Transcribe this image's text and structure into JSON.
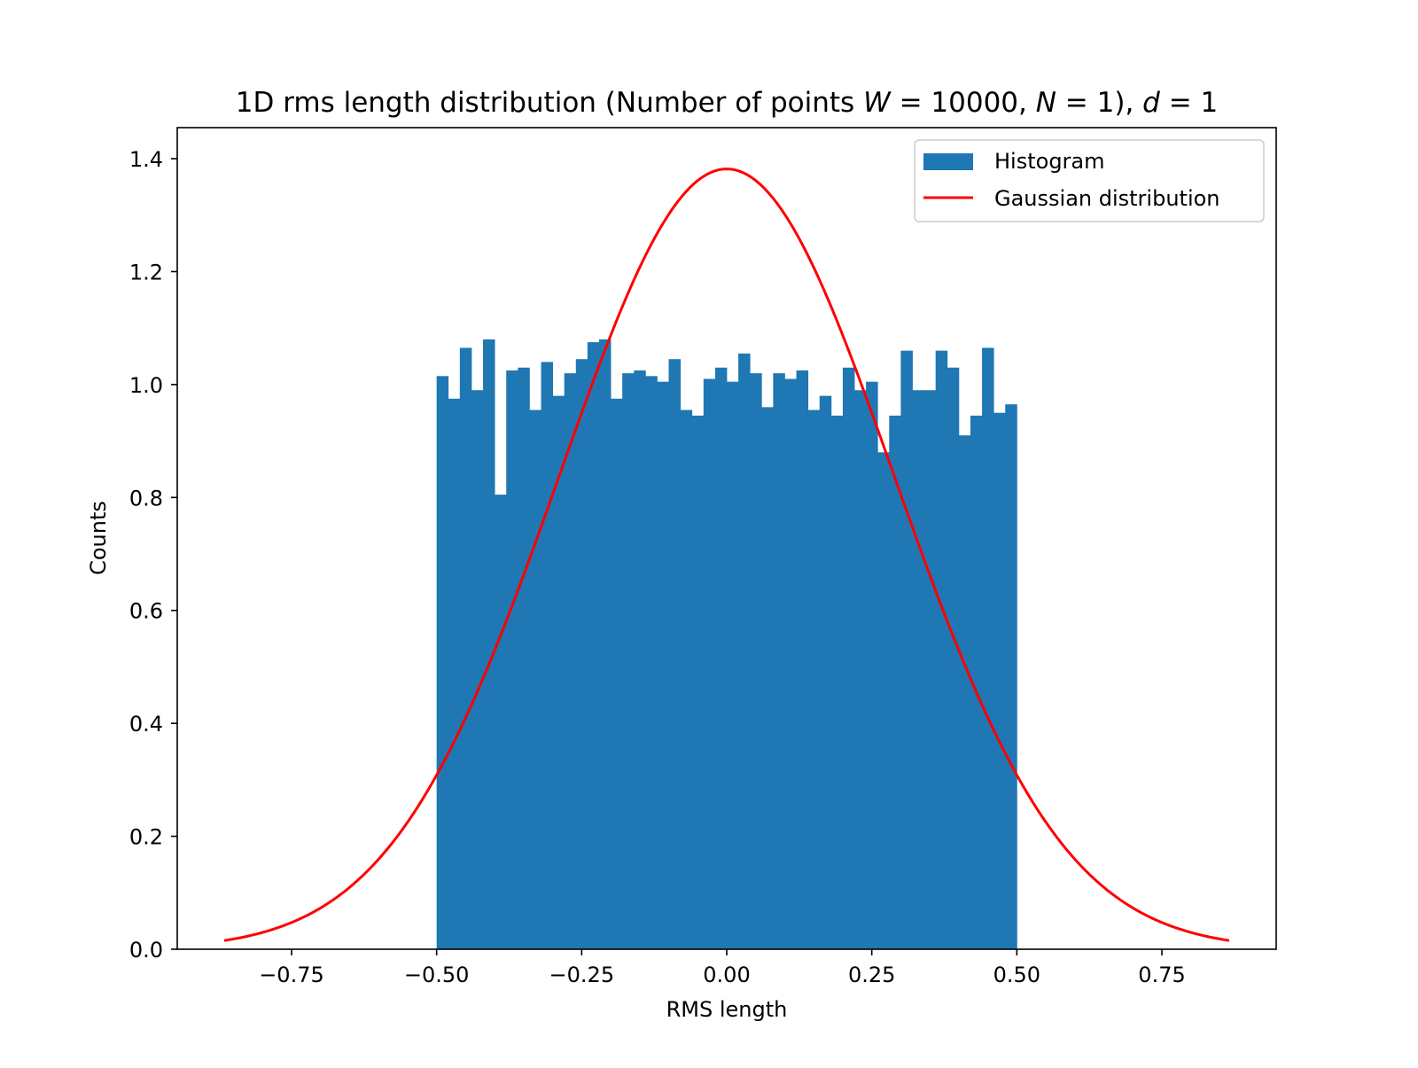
{
  "chart_data": {
    "type": "bar",
    "title": "1D rms length distribution (Number of points W = 10000, N = 1), d = 1",
    "title_parts": {
      "prefix": "1D rms length distribution (Number of points ",
      "W": "W",
      "eq1": " = 10000, ",
      "N": "N",
      "eq2": " = 1), ",
      "d": "d",
      "eq3": " = 1"
    },
    "xlabel": "RMS length",
    "ylabel": "Counts",
    "xlim": [
      -0.947,
      0.947
    ],
    "ylim": [
      0,
      1.455
    ],
    "xticks": [
      -0.75,
      -0.5,
      -0.25,
      0.0,
      0.25,
      0.5,
      0.75
    ],
    "xtick_labels": [
      "−0.75",
      "−0.50",
      "−0.25",
      "0.00",
      "0.25",
      "0.50",
      "0.75"
    ],
    "yticks": [
      0.0,
      0.2,
      0.4,
      0.6,
      0.8,
      1.0,
      1.2,
      1.4
    ],
    "ytick_labels": [
      "0.0",
      "0.2",
      "0.4",
      "0.6",
      "0.8",
      "1.0",
      "1.2",
      "1.4"
    ],
    "grid": false,
    "legend_position": "top-right",
    "series": [
      {
        "name": "Histogram",
        "kind": "histogram",
        "color": "#1f77b4",
        "bin_start": -0.5,
        "bin_width": 0.02,
        "values": [
          1.015,
          0.975,
          1.065,
          0.99,
          1.08,
          0.805,
          1.025,
          1.03,
          0.955,
          1.04,
          0.98,
          1.02,
          1.045,
          1.075,
          1.08,
          0.975,
          1.02,
          1.025,
          1.015,
          1.005,
          1.045,
          0.955,
          0.945,
          1.01,
          1.03,
          1.005,
          1.055,
          1.02,
          0.96,
          1.02,
          1.01,
          1.025,
          0.955,
          0.98,
          0.945,
          1.03,
          0.99,
          1.005,
          0.88,
          0.945,
          1.06,
          0.99,
          0.99,
          1.06,
          1.03,
          0.91,
          0.945,
          1.065,
          0.95,
          0.965
        ]
      },
      {
        "name": "Gaussian distribution",
        "kind": "line",
        "color": "#ff0000",
        "mean": 0.0,
        "sigma": 0.2887,
        "x_range": [
          -0.866,
          0.866
        ],
        "samples": 241
      }
    ]
  }
}
